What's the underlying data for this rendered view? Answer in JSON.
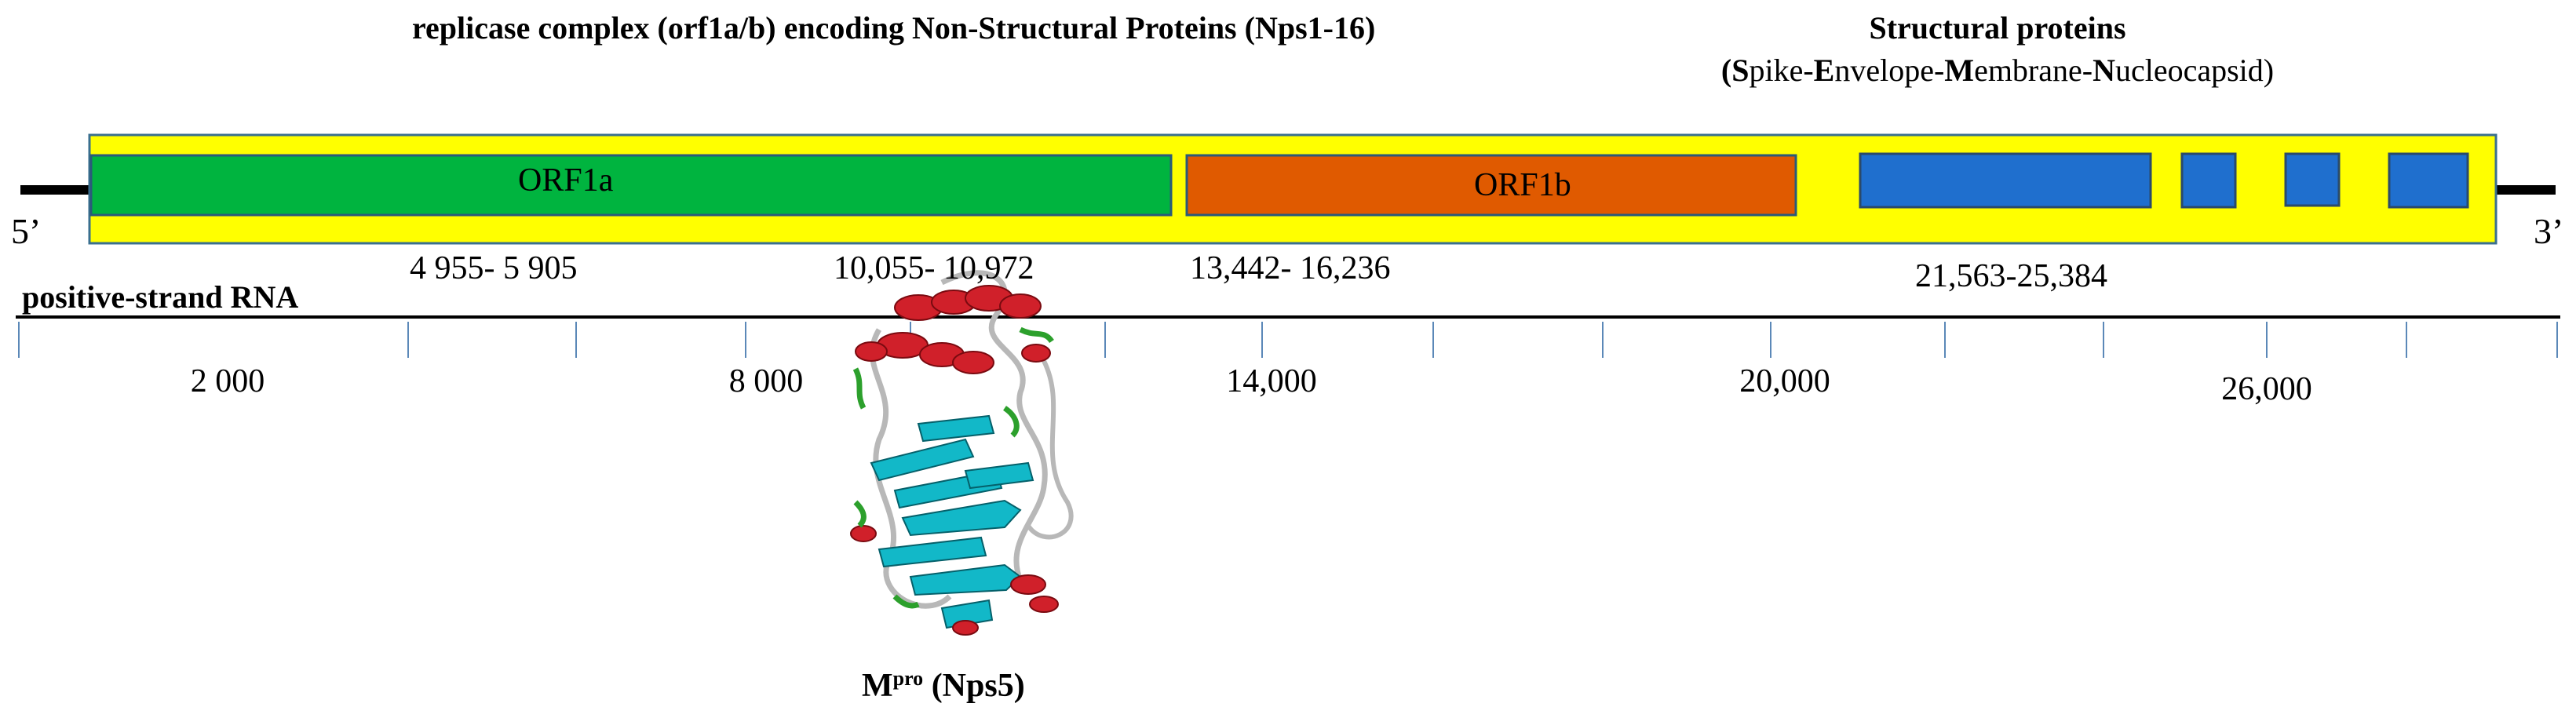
{
  "header": {
    "left": "replicase complex (orf1a/b) encoding Non-Structural Proteins  (Nps1-16)",
    "right_title": "Structural proteins",
    "right_subtitle_parts": [
      {
        "text": "(",
        "bold": true
      },
      {
        "text": "S",
        "bold": true
      },
      {
        "text": "pike-",
        "bold": false
      },
      {
        "text": "E",
        "bold": true
      },
      {
        "text": "nvelope-",
        "bold": false
      },
      {
        "text": "M",
        "bold": true
      },
      {
        "text": "embrane-",
        "bold": false
      },
      {
        "text": "N",
        "bold": true
      },
      {
        "text": "ucleocapsid)",
        "bold": false
      }
    ]
  },
  "genome": {
    "end5": "5’",
    "end3": "3’",
    "strand_label": "positive-strand RNA",
    "orfs": [
      {
        "name": "ORF1a",
        "color": "#00b43f"
      },
      {
        "name": "ORF1b",
        "color": "#e05a00"
      }
    ],
    "structural_color": "#1f6fce",
    "background_color": "#ffff00",
    "ranges": [
      "4 955- 5 905",
      "10,055- 10,972",
      "13,442- 16,236",
      "21,563-25,384"
    ]
  },
  "axis": {
    "tick_labels": [
      "2 000",
      "8 000",
      "14,000",
      "20,000",
      "26,000"
    ]
  },
  "protein": {
    "label_main": "M",
    "label_sup": "pro",
    "label_rest": " (Nps5)",
    "helix_color": "#d0202a",
    "sheet_color": "#12b8c8",
    "coil_color": "#b8b8b8",
    "turn_color": "#2ca02c"
  }
}
